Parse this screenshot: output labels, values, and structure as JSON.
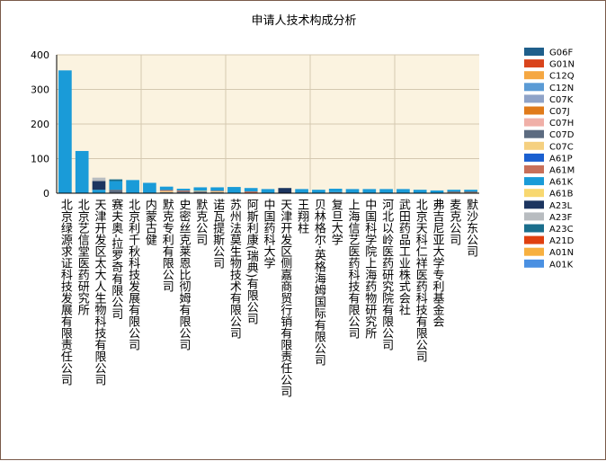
{
  "chart_data": {
    "type": "bar",
    "stacked": true,
    "title": "申请人技术构成分析",
    "xlabel": "",
    "ylabel": "",
    "ylim": [
      0,
      400
    ],
    "yticks": [
      0,
      100,
      200,
      300,
      400
    ],
    "grid": true,
    "legend_position": "right",
    "categories": [
      "北京绿源求证科技发展有限责任公司",
      "北京艺信堂医药研究所",
      "天津开发区太大人生物科技有限公司",
      "赛夫奥-拉罗奇有限公司",
      "北京利千秋科技发展有限公司",
      "内蒙古健",
      "默克专利有限公司",
      "史密丝克莱恩比彻姆有限公司",
      "默克公司",
      "诺瓦提斯公司",
      "苏州法莫生物技术有限公司",
      "阿斯利康(瑞典)有限公司",
      "中国药科大学",
      "天津开发区侧嘉商贸行销有限责任公司",
      "王翔柱",
      "贝林格尔·英格海姆国际有限公司",
      "复旦大学",
      "上海信艺医药科技有限公司",
      "中国科学院上海药物研究所",
      "河北以岭医药研究院有限公司",
      "武田药品工业株式会社",
      "北京天科仁祥医药科技有限公司",
      "弗吉尼亚大学专利基金会",
      "麦克公司",
      "默沙东公司"
    ],
    "series": [
      {
        "name": "G06F",
        "color": "#1f5f8b",
        "values": [
          0,
          0,
          0,
          0,
          0,
          0,
          0,
          0,
          0,
          0,
          0,
          0,
          0,
          0,
          0,
          0,
          0,
          0,
          0,
          0,
          0,
          0,
          0,
          0,
          0
        ]
      },
      {
        "name": "G01N",
        "color": "#d9441c",
        "values": [
          0,
          0,
          0,
          0,
          0,
          0,
          0,
          0,
          0,
          0,
          0,
          0,
          0,
          0,
          0,
          0,
          0,
          0,
          0,
          0,
          0,
          0,
          0,
          0,
          0
        ]
      },
      {
        "name": "C12Q",
        "color": "#f5a742",
        "values": [
          0,
          0,
          0,
          0,
          0,
          0,
          0,
          0,
          0,
          0,
          0,
          0,
          0,
          0,
          0,
          0,
          0,
          0,
          0,
          0,
          0,
          0,
          0,
          0,
          0
        ]
      },
      {
        "name": "C12N",
        "color": "#5b9bd5",
        "values": [
          0,
          0,
          0,
          0,
          0,
          0,
          0,
          0,
          0,
          0,
          0,
          0,
          0,
          0,
          0,
          0,
          0,
          0,
          0,
          0,
          0,
          0,
          0,
          0,
          0
        ]
      },
      {
        "name": "C07K",
        "color": "#8fa3c8",
        "values": [
          0,
          0,
          0,
          0,
          0,
          0,
          0,
          0,
          0,
          0,
          0,
          0,
          0,
          0,
          0,
          0,
          0,
          0,
          0,
          0,
          0,
          0,
          0,
          0,
          0
        ]
      },
      {
        "name": "C07J",
        "color": "#e07b1a",
        "values": [
          0,
          0,
          0,
          0,
          0,
          0,
          0,
          0,
          0,
          0,
          0,
          0,
          0,
          0,
          0,
          0,
          0,
          0,
          0,
          0,
          0,
          0,
          0,
          2,
          2
        ]
      },
      {
        "name": "C07H",
        "color": "#f0b0a8",
        "values": [
          0,
          0,
          0,
          0,
          0,
          0,
          0,
          0,
          0,
          0,
          0,
          0,
          0,
          0,
          0,
          0,
          0,
          0,
          0,
          0,
          0,
          0,
          0,
          0,
          0
        ]
      },
      {
        "name": "C07D",
        "color": "#5c6b80",
        "values": [
          0,
          0,
          0,
          10,
          0,
          0,
          3,
          5,
          5,
          3,
          0,
          0,
          0,
          0,
          0,
          0,
          3,
          0,
          0,
          0,
          0,
          0,
          0,
          3,
          3
        ]
      },
      {
        "name": "C07C",
        "color": "#f5d080",
        "values": [
          0,
          0,
          0,
          0,
          0,
          0,
          3,
          0,
          2,
          2,
          0,
          0,
          0,
          0,
          0,
          0,
          0,
          0,
          0,
          0,
          0,
          0,
          0,
          0,
          0
        ]
      },
      {
        "name": "A61P",
        "color": "#1a5fd0",
        "values": [
          0,
          0,
          0,
          0,
          0,
          0,
          0,
          0,
          0,
          0,
          0,
          0,
          0,
          0,
          0,
          0,
          0,
          0,
          0,
          0,
          0,
          0,
          0,
          0,
          0
        ]
      },
      {
        "name": "A61M",
        "color": "#c8705a",
        "values": [
          0,
          0,
          0,
          0,
          0,
          0,
          3,
          3,
          0,
          2,
          0,
          5,
          0,
          0,
          0,
          0,
          0,
          0,
          0,
          0,
          0,
          0,
          0,
          0,
          0
        ]
      },
      {
        "name": "A61K",
        "color": "#1a9bd8",
        "values": [
          355,
          122,
          10,
          25,
          38,
          30,
          10,
          5,
          10,
          10,
          18,
          10,
          12,
          0,
          12,
          10,
          10,
          12,
          12,
          12,
          12,
          10,
          8,
          5,
          5
        ]
      },
      {
        "name": "A61B",
        "color": "#f8d870",
        "values": [
          0,
          0,
          0,
          0,
          0,
          0,
          0,
          0,
          0,
          0,
          0,
          0,
          0,
          0,
          0,
          0,
          0,
          0,
          0,
          0,
          0,
          0,
          0,
          0,
          0
        ]
      },
      {
        "name": "A23L",
        "color": "#1c3560",
        "values": [
          0,
          0,
          25,
          0,
          0,
          0,
          0,
          0,
          0,
          0,
          0,
          0,
          0,
          15,
          0,
          0,
          0,
          0,
          0,
          0,
          0,
          0,
          0,
          0,
          0
        ]
      },
      {
        "name": "A23F",
        "color": "#b8bcc0",
        "values": [
          0,
          0,
          10,
          0,
          0,
          0,
          0,
          0,
          0,
          0,
          0,
          0,
          0,
          0,
          0,
          0,
          0,
          0,
          0,
          0,
          0,
          0,
          0,
          0,
          0
        ]
      },
      {
        "name": "A23C",
        "color": "#1a6e8c",
        "values": [
          0,
          0,
          0,
          5,
          0,
          0,
          0,
          0,
          0,
          0,
          0,
          0,
          0,
          0,
          0,
          0,
          0,
          0,
          0,
          0,
          0,
          0,
          0,
          0,
          0
        ]
      },
      {
        "name": "A21D",
        "color": "#e04010",
        "values": [
          0,
          0,
          0,
          0,
          0,
          0,
          0,
          0,
          0,
          0,
          0,
          0,
          0,
          0,
          0,
          0,
          0,
          0,
          0,
          0,
          0,
          0,
          0,
          0,
          0
        ]
      },
      {
        "name": "A01N",
        "color": "#f7b040",
        "values": [
          0,
          0,
          0,
          0,
          0,
          0,
          0,
          0,
          0,
          0,
          0,
          0,
          0,
          0,
          0,
          0,
          0,
          0,
          0,
          0,
          0,
          0,
          0,
          0,
          0
        ]
      },
      {
        "name": "A01K",
        "color": "#4a90e2",
        "values": [
          0,
          0,
          0,
          0,
          0,
          0,
          0,
          0,
          0,
          0,
          0,
          0,
          0,
          0,
          0,
          0,
          0,
          0,
          0,
          0,
          0,
          0,
          0,
          0,
          0
        ]
      }
    ]
  }
}
